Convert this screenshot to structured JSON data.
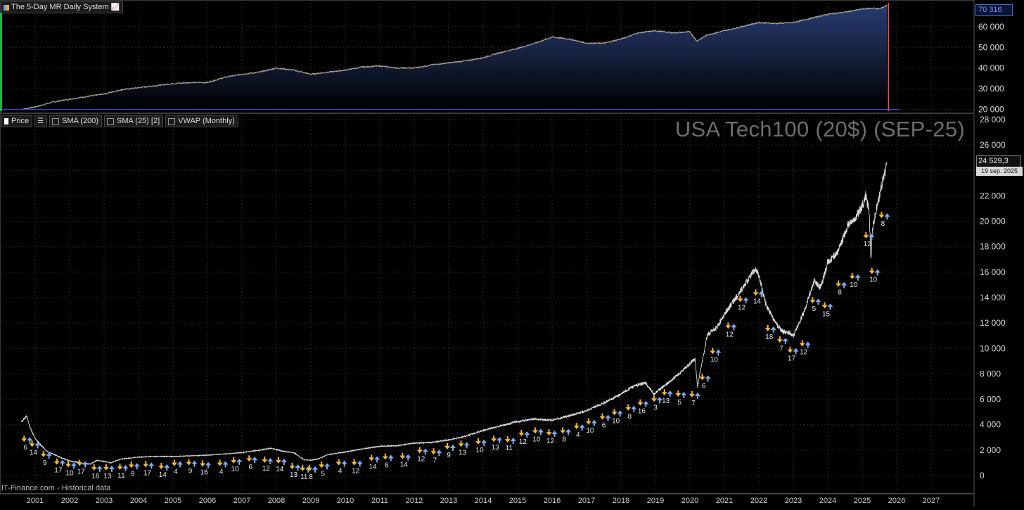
{
  "equity_pane": {
    "title": "The 5-Day MR Daily System",
    "last_value_label": "70 316",
    "y_ticks": [
      "60 000",
      "50 000",
      "40 000",
      "30 000",
      "20 000"
    ]
  },
  "price_pane": {
    "legend": [
      {
        "label": "Price"
      },
      {
        "label": "SMA (200)"
      },
      {
        "label": "SMA (25) [2]"
      },
      {
        "label": "VWAP (Monthly)"
      }
    ],
    "title": "USA Tech100 (20$) (SEP-25)",
    "last_price_label": "24 529,3",
    "last_date_label": "19 sep. 2025",
    "y_ticks": [
      "28 000",
      "26 000",
      "24 000",
      "22 000",
      "20 000",
      "18 000",
      "16 000",
      "14 000",
      "12 000",
      "10 000",
      "8 000",
      "6 000",
      "4 000",
      "2 000",
      "0"
    ],
    "source": "IT-Finance.com - Historical data"
  },
  "x_ticks": [
    "2001",
    "2002",
    "2003",
    "2004",
    "2005",
    "2006",
    "2007",
    "2008",
    "2009",
    "2010",
    "2011",
    "2012",
    "2013",
    "2014",
    "2015",
    "2016",
    "2017",
    "2018",
    "2019",
    "2020",
    "2021",
    "2022",
    "2023",
    "2024",
    "2025",
    "2026",
    "2027"
  ],
  "colors": {
    "background": "#000000",
    "price_line": "#e6e6e6",
    "equity_line_up": "#6ea0e6",
    "equity_line_down": "#f2a62a",
    "equity_fill": "#1c2e58",
    "buy_arrow": "#f2b630",
    "sell_arrow": "#7aaaf0",
    "start_marker": "#27d14a",
    "end_marker": "#e0524a",
    "baseline": "#2f4ad8"
  },
  "chart_data": [
    {
      "type": "area",
      "title": "The 5-Day MR Daily System",
      "ylim": [
        18500,
        71500
      ],
      "y_tick_values": [
        60000,
        50000,
        40000,
        30000,
        20000
      ],
      "baseline": 20000,
      "x": [
        2000.6,
        2001.0,
        2001.5,
        2002.0,
        2002.5,
        2003.0,
        2003.5,
        2004.0,
        2004.5,
        2005.0,
        2005.5,
        2006.0,
        2006.5,
        2007.0,
        2007.5,
        2008.0,
        2008.5,
        2009.0,
        2009.5,
        2010.0,
        2010.5,
        2011.0,
        2011.5,
        2012.0,
        2012.5,
        2013.0,
        2013.5,
        2014.0,
        2014.5,
        2015.0,
        2015.5,
        2016.0,
        2016.5,
        2017.0,
        2017.5,
        2018.0,
        2018.5,
        2019.0,
        2019.5,
        2020.0,
        2020.2,
        2020.5,
        2021.0,
        2021.5,
        2022.0,
        2022.5,
        2023.0,
        2023.5,
        2024.0,
        2024.5,
        2025.0,
        2025.3,
        2025.5,
        2025.72
      ],
      "y": [
        20000,
        21200,
        23500,
        25000,
        26200,
        27500,
        29500,
        30500,
        31500,
        32500,
        33000,
        33000,
        35500,
        37000,
        38000,
        40000,
        39000,
        37000,
        38000,
        39000,
        40500,
        41000,
        40000,
        40000,
        41500,
        42500,
        43500,
        45000,
        47500,
        49500,
        52000,
        55000,
        54000,
        52000,
        52000,
        54000,
        57000,
        58000,
        57000,
        57500,
        53000,
        56000,
        58000,
        60000,
        62000,
        61500,
        62000,
        64000,
        66000,
        67000,
        68500,
        69000,
        68500,
        70316
      ]
    },
    {
      "type": "line",
      "title": "USA Tech100 (20$) (SEP-25)",
      "ylim": [
        -600,
        28500
      ],
      "y_tick_values": [
        28000,
        26000,
        24000,
        22000,
        20000,
        18000,
        16000,
        14000,
        12000,
        10000,
        8000,
        6000,
        4000,
        2000,
        0
      ],
      "last_price": 24529.3,
      "x": [
        2000.6,
        2000.75,
        2000.85,
        2001.0,
        2001.2,
        2001.35,
        2001.6,
        2001.75,
        2002.0,
        2002.3,
        2002.6,
        2002.8,
        2003.0,
        2003.2,
        2003.5,
        2004.0,
        2004.5,
        2005.0,
        2005.5,
        2006.0,
        2006.5,
        2007.0,
        2007.5,
        2007.85,
        2008.2,
        2008.5,
        2008.8,
        2009.0,
        2009.2,
        2009.5,
        2010.0,
        2010.5,
        2011.0,
        2011.5,
        2012.0,
        2012.5,
        2013.0,
        2013.5,
        2014.0,
        2014.5,
        2015.0,
        2015.5,
        2016.0,
        2016.5,
        2017.0,
        2017.5,
        2018.0,
        2018.3,
        2018.7,
        2018.95,
        2019.3,
        2019.6,
        2020.0,
        2020.15,
        2020.22,
        2020.5,
        2020.8,
        2021.0,
        2021.5,
        2021.9,
        2022.0,
        2022.2,
        2022.45,
        2022.7,
        2022.9,
        2023.0,
        2023.3,
        2023.6,
        2023.8,
        2024.0,
        2024.3,
        2024.6,
        2024.8,
        2025.0,
        2025.1,
        2025.2,
        2025.25,
        2025.3,
        2025.4,
        2025.55,
        2025.72
      ],
      "y": [
        4200,
        4700,
        3800,
        2900,
        2300,
        1900,
        1600,
        1400,
        1150,
        1000,
        900,
        1200,
        1100,
        1000,
        1300,
        1450,
        1500,
        1500,
        1550,
        1600,
        1700,
        1800,
        2000,
        2150,
        1900,
        1800,
        1250,
        1200,
        1300,
        1650,
        1850,
        2100,
        2300,
        2350,
        2550,
        2600,
        2800,
        3100,
        3550,
        3900,
        4250,
        4450,
        4350,
        4700,
        5100,
        5700,
        6400,
        6950,
        7300,
        6400,
        7150,
        7800,
        8800,
        9200,
        7000,
        11000,
        11700,
        12700,
        14600,
        16300,
        15700,
        13500,
        12100,
        11300,
        11200,
        11000,
        12800,
        15300,
        14800,
        16800,
        17600,
        19800,
        20200,
        21200,
        22000,
        20800,
        17000,
        19500,
        20800,
        22700,
        24529.3
      ]
    },
    {
      "type": "scatter",
      "name": "entries (buy)",
      "x": [
        2000.72,
        2000.95,
        2001.28,
        2001.67,
        2002.0,
        2002.33,
        2002.75,
        2003.1,
        2003.5,
        2003.83,
        2004.25,
        2004.7,
        2005.08,
        2005.5,
        2005.9,
        2006.4,
        2006.8,
        2007.25,
        2007.7,
        2008.1,
        2008.5,
        2008.8,
        2009.0,
        2009.35,
        2009.85,
        2010.3,
        2010.8,
        2011.2,
        2011.7,
        2012.2,
        2012.6,
        2013.0,
        2013.4,
        2013.9,
        2014.35,
        2014.75,
        2015.15,
        2015.55,
        2015.95,
        2016.35,
        2016.75,
        2017.1,
        2017.5,
        2017.85,
        2018.25,
        2018.6,
        2019.0,
        2019.3,
        2019.7,
        2020.1,
        2020.4,
        2020.7,
        2021.15,
        2021.5,
        2021.95,
        2022.3,
        2022.65,
        2022.95,
        2023.3,
        2023.6,
        2023.95,
        2024.35,
        2024.75,
        2025.15,
        2025.32,
        2025.6
      ],
      "y": [
        2700,
        2300,
        1500,
        900,
        700,
        800,
        450,
        450,
        500,
        650,
        700,
        550,
        800,
        850,
        750,
        800,
        1000,
        1150,
        1050,
        1000,
        550,
        400,
        400,
        650,
        850,
        850,
        1200,
        1300,
        1350,
        1800,
        1700,
        2100,
        2300,
        2500,
        2700,
        2650,
        3150,
        3350,
        3200,
        3350,
        3700,
        4050,
        4450,
        4800,
        5150,
        5550,
        5850,
        6350,
        6250,
        6200,
        7550,
        9600,
        11600,
        13700,
        14200,
        11400,
        10500,
        9700,
        10200,
        13600,
        13200,
        14900,
        15500,
        18700,
        15900,
        20300
      ],
      "labels": [
        "6",
        "14",
        "9",
        "17",
        "10",
        "17",
        "16",
        "13",
        "11",
        "9",
        "17",
        "14",
        "4",
        "9",
        "16",
        "4",
        "10",
        "6",
        "12",
        "14",
        "13",
        "11",
        "8",
        "5",
        "4",
        "12",
        "14",
        "6",
        "14",
        "12",
        "7",
        "9",
        "13",
        "10",
        "13",
        "11",
        "12",
        "10",
        "12",
        "8",
        "4",
        "10",
        "6",
        "10",
        "8",
        "16",
        "3",
        "13",
        "5",
        "7",
        "6",
        "10",
        "12",
        "12",
        "14",
        "18",
        "7",
        "17",
        "12",
        "5",
        "15",
        "8",
        "10",
        "12",
        "10",
        "8"
      ]
    }
  ]
}
